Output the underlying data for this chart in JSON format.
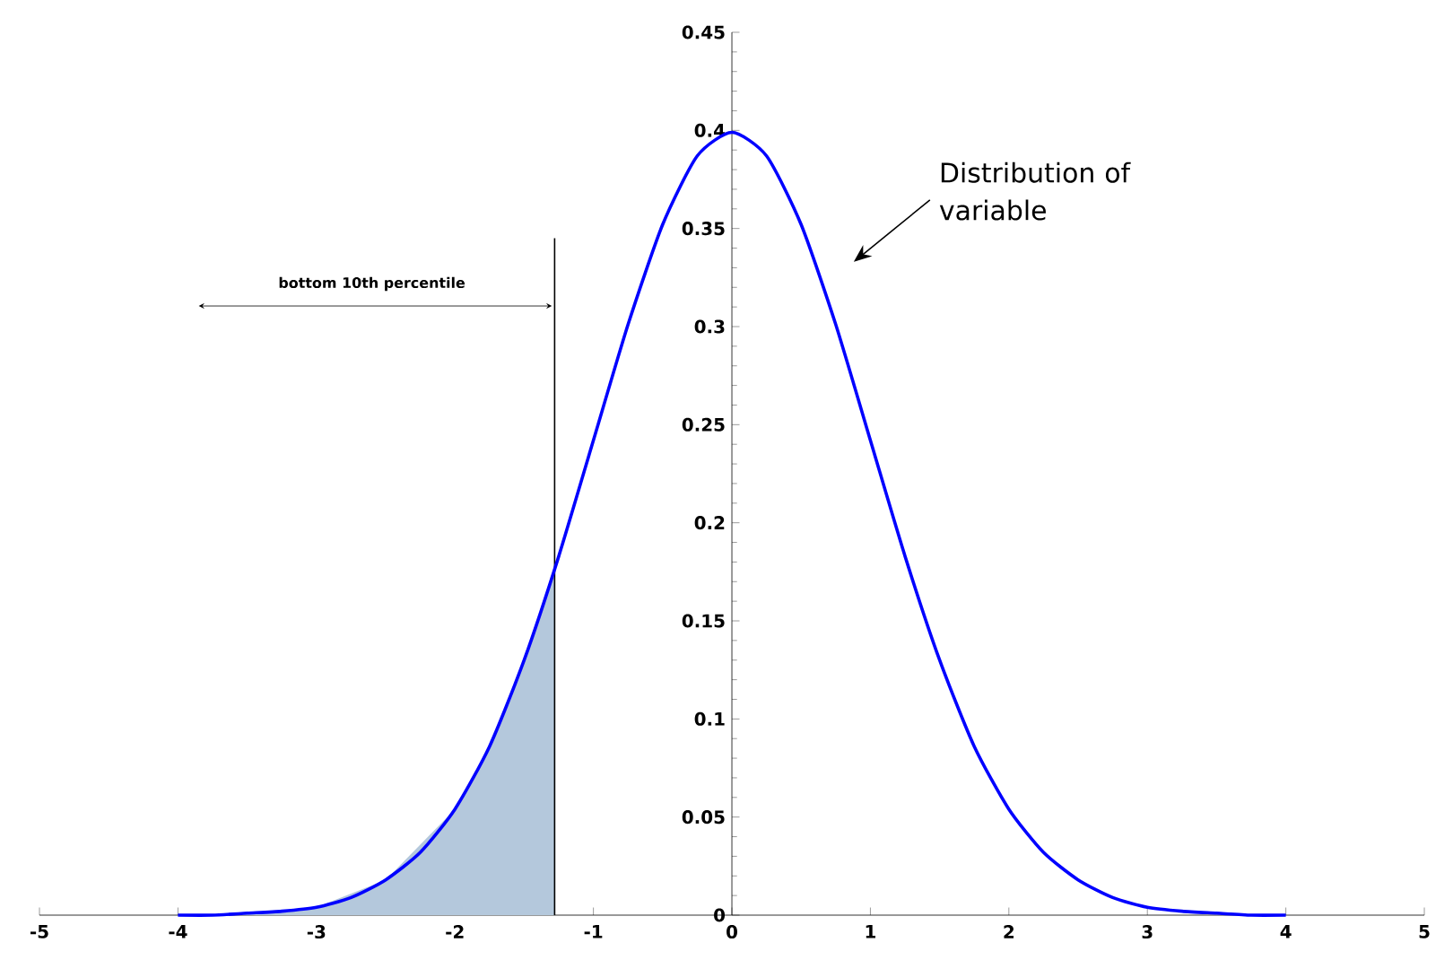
{
  "chart_data": {
    "type": "line",
    "xlim": [
      -5,
      5
    ],
    "ylim": [
      0,
      0.45
    ],
    "xticks": [
      -5,
      -4,
      -3,
      -2,
      -1,
      0,
      1,
      2,
      3,
      4,
      5
    ],
    "yticks": [
      0,
      0.05,
      0.1,
      0.15,
      0.2,
      0.25,
      0.3,
      0.35,
      0.4,
      0.45
    ],
    "grid": false,
    "marker": "none",
    "line_style": "solid",
    "series": [
      {
        "type": "area",
        "color": "#b4c8dc",
        "x": [
          -4,
          -3.5,
          -3,
          -2.5,
          -2,
          -1.75,
          -1.5,
          -1.28
        ],
        "values": [
          0.0,
          0.001,
          0.004,
          0.018,
          0.054,
          0.086,
          0.13,
          0.176
        ]
      },
      {
        "type": "line",
        "color": "#000000",
        "x": [
          -1.28,
          -1.28
        ],
        "values": [
          0,
          0.345
        ]
      },
      {
        "color": "#0000ff",
        "x": [
          -4,
          -3.75,
          -3.5,
          -3.25,
          -3,
          -2.75,
          -2.5,
          -2.25,
          -2,
          -1.75,
          -1.5,
          -1.25,
          -1,
          -0.75,
          -0.5,
          -0.25,
          0,
          0.25,
          0.5,
          0.75,
          1,
          1.25,
          1.5,
          1.75,
          2,
          2.25,
          2.5,
          2.75,
          3,
          3.25,
          3.5,
          3.75,
          4
        ],
        "values": [
          0.0,
          0.0,
          0.001,
          0.002,
          0.004,
          0.009,
          0.018,
          0.032,
          0.054,
          0.086,
          0.13,
          0.183,
          0.242,
          0.301,
          0.352,
          0.387,
          0.399,
          0.387,
          0.352,
          0.301,
          0.242,
          0.183,
          0.13,
          0.086,
          0.054,
          0.032,
          0.018,
          0.009,
          0.004,
          0.002,
          0.001,
          0.0,
          0.0
        ]
      }
    ],
    "annotations": [
      "bottom 10th percentile",
      "Distribution of variable"
    ]
  }
}
